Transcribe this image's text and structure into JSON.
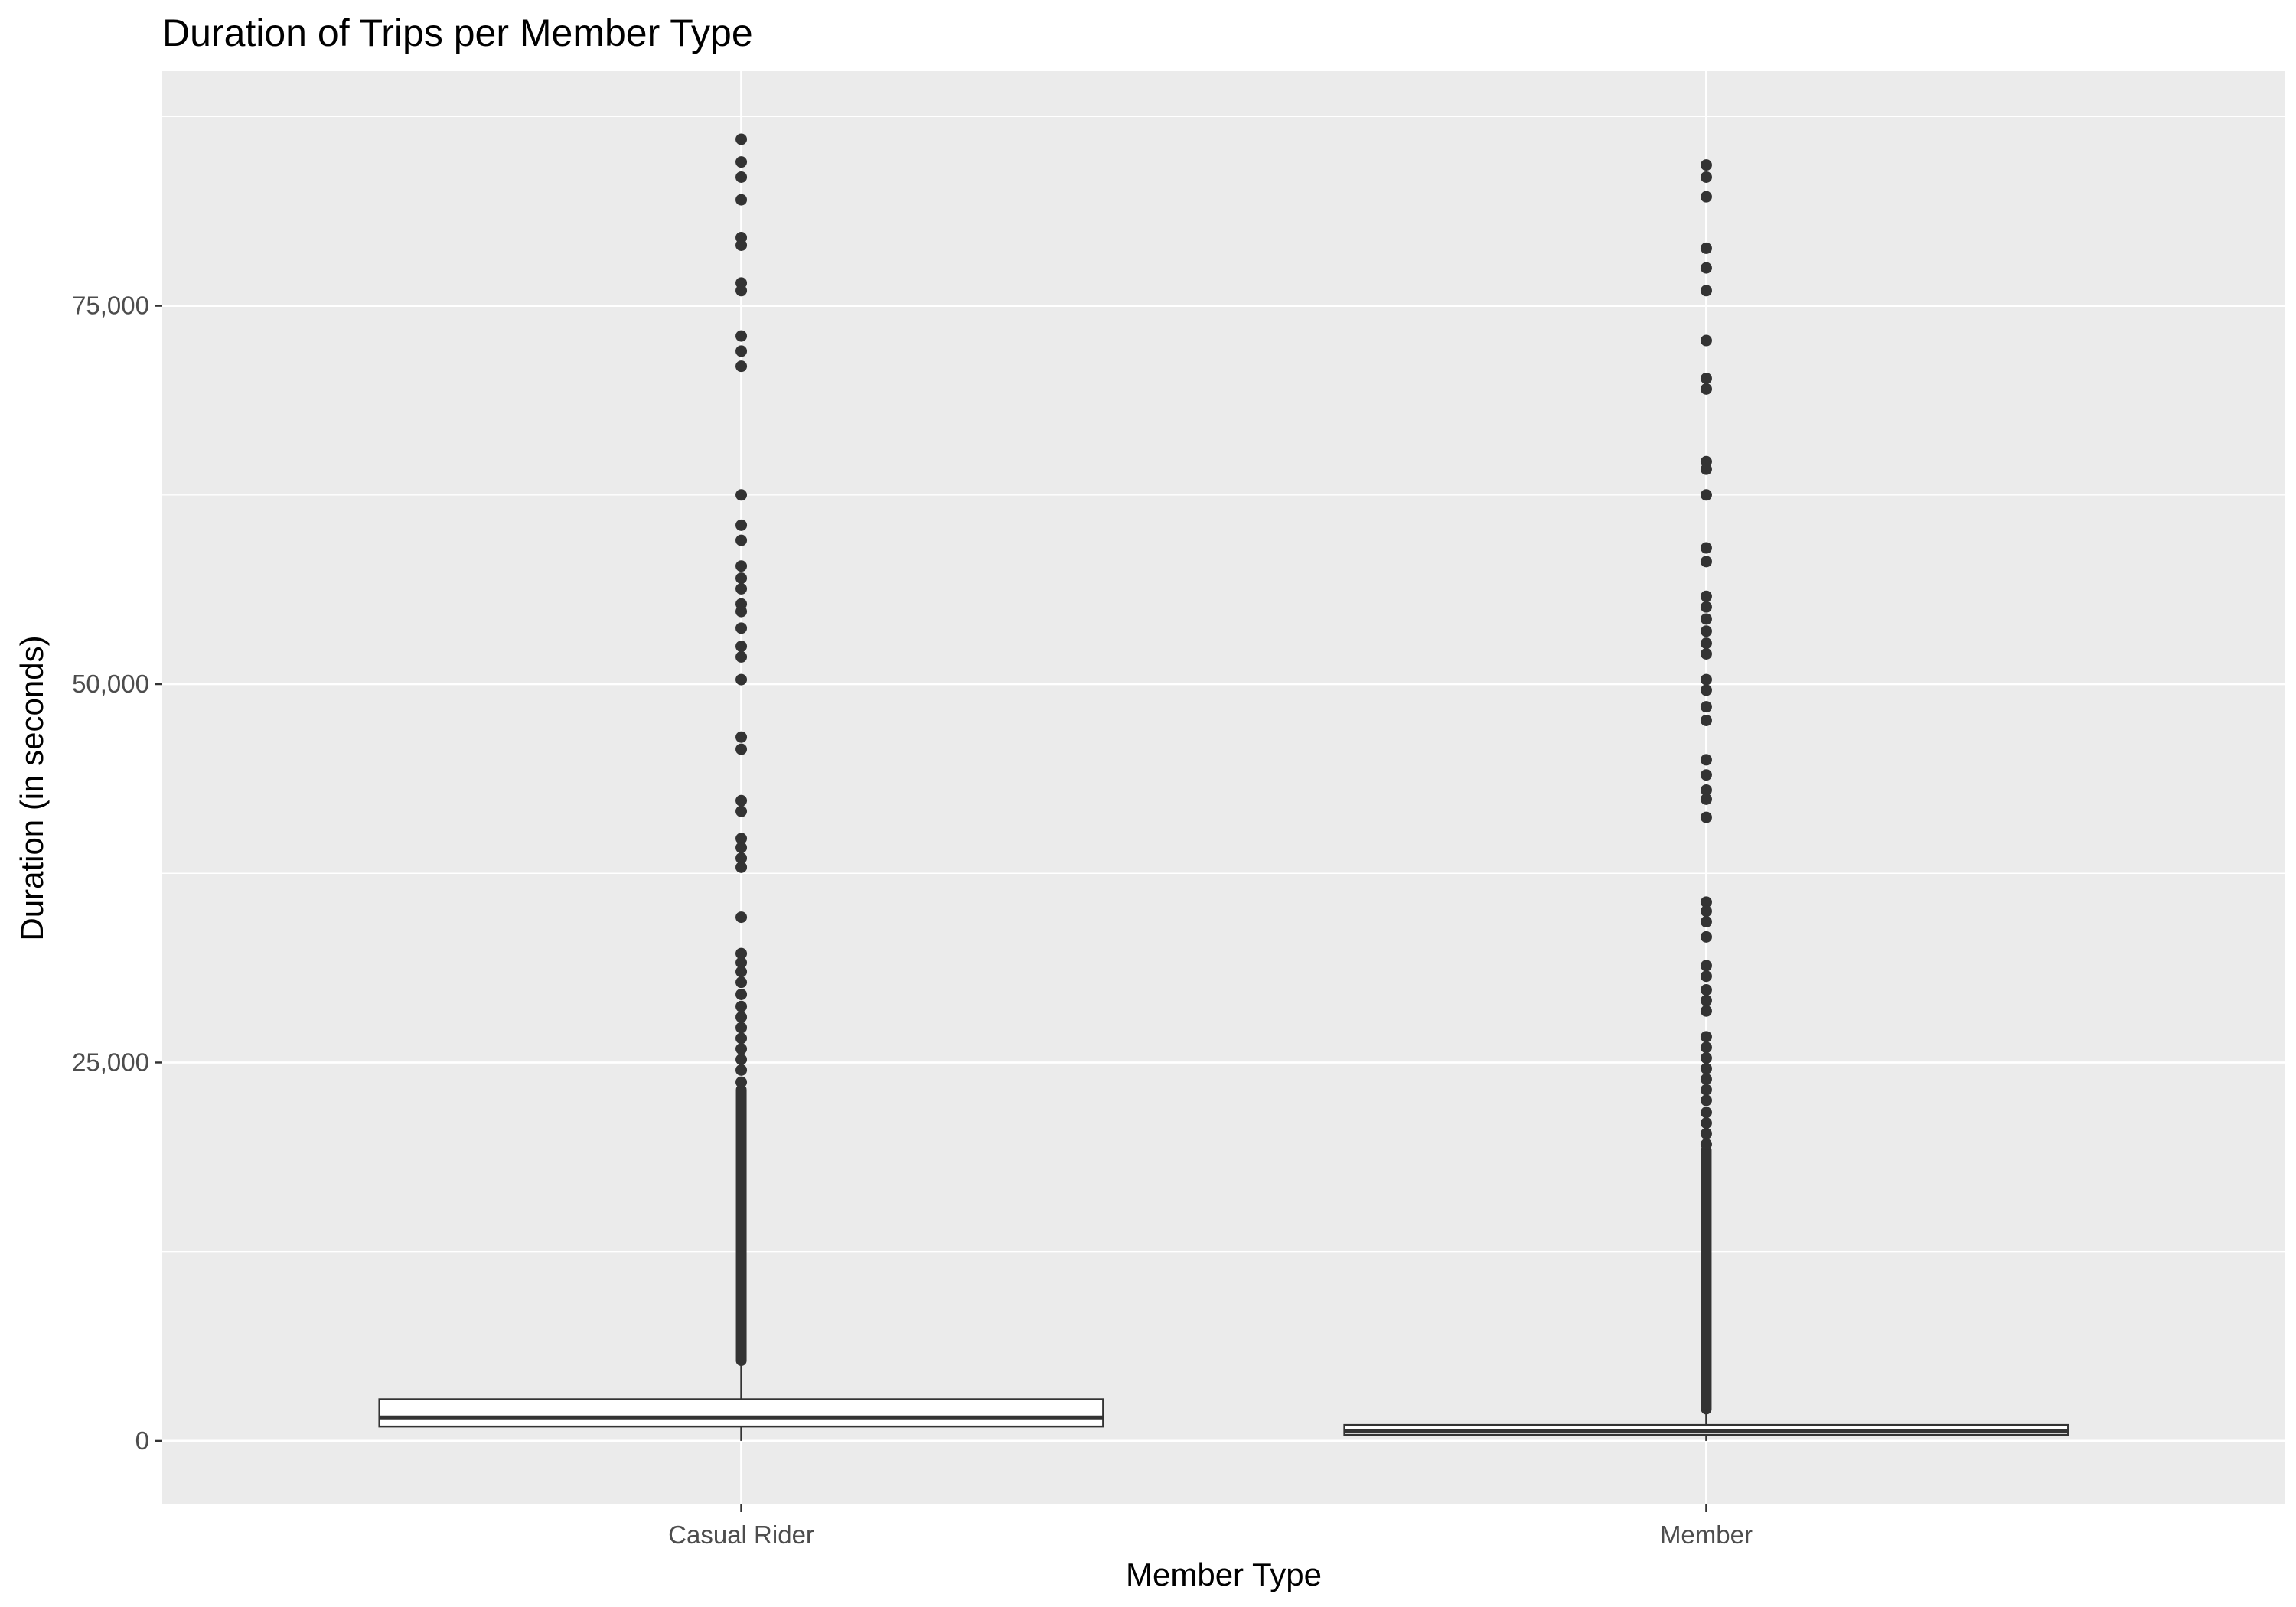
{
  "chart_data": {
    "type": "boxplot",
    "title": "Duration of Trips per Member Type",
    "xlabel": "Member Type",
    "ylabel": "Duration (in seconds)",
    "ylim": [
      -4200,
      90500
    ],
    "yticks": [
      0,
      25000,
      50000,
      75000
    ],
    "ytick_labels": [
      "0",
      "25,000",
      "50,000",
      "75,000"
    ],
    "y_minor_gridlines": [
      12500,
      37500,
      62500,
      87500
    ],
    "grid": true,
    "legend": "none",
    "categories": [
      "Casual Rider",
      "Member"
    ],
    "boxes": [
      {
        "name": "Casual Rider",
        "whisker_low": 0,
        "q1": 950,
        "median": 1550,
        "q3": 2750,
        "whisker_high": 5300,
        "dense_outlier_range": [
          5300,
          23200
        ],
        "outliers": [
          86000,
          84500,
          83500,
          82000,
          79500,
          79000,
          76500,
          76000,
          73000,
          72000,
          71000,
          62500,
          60500,
          59500,
          57800,
          57000,
          56300,
          55300,
          54800,
          53700,
          52500,
          51800,
          50300,
          46500,
          45700,
          42300,
          41600,
          39800,
          39200,
          38500,
          37900,
          34600,
          32200,
          31600,
          31000,
          30300,
          29500,
          28700,
          28000,
          27300,
          26600,
          25900,
          25200,
          24500,
          23700
        ]
      },
      {
        "name": "Member",
        "whisker_low": 0,
        "q1": 400,
        "median": 650,
        "q3": 1050,
        "whisker_high": 2100,
        "dense_outlier_range": [
          2100,
          19200
        ],
        "outliers": [
          84300,
          83500,
          82200,
          78800,
          77500,
          76000,
          72700,
          70200,
          69500,
          64700,
          64200,
          62500,
          59000,
          58100,
          55800,
          55100,
          54300,
          53500,
          52700,
          52000,
          50300,
          49600,
          48500,
          47600,
          45000,
          44000,
          43000,
          42400,
          41200,
          35600,
          35000,
          34300,
          33300,
          31400,
          30700,
          29800,
          29100,
          28400,
          26700,
          26000,
          25300,
          24600,
          23900,
          23200,
          22500,
          21700,
          21000,
          20300,
          19600
        ]
      }
    ]
  }
}
